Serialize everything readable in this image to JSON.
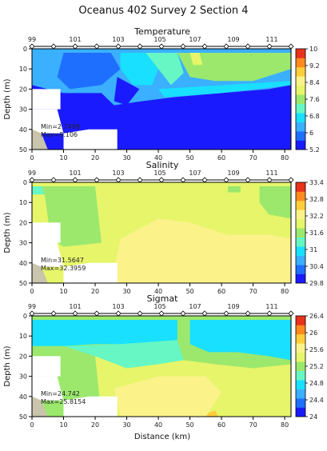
{
  "title": "Oceanus 402 Survey 2 Section 4",
  "xlabel": "Distance (km)",
  "chart_data": [
    {
      "type": "heatmap",
      "title": "Temperature",
      "ylabel": "Depth (m)",
      "x_ticks": [
        0,
        10,
        20,
        30,
        40,
        50,
        60,
        70,
        80
      ],
      "y_ticks": [
        0,
        10,
        20,
        30,
        40,
        50
      ],
      "xlim": [
        0,
        82
      ],
      "ylim": [
        0,
        50
      ],
      "station_ticks": [
        "99",
        "101",
        "103",
        "105",
        "107",
        "109",
        "111"
      ],
      "colorbar_ticks": [
        "10",
        "9.2",
        "8.4",
        "7.6",
        "6.8",
        "6",
        "5.2"
      ],
      "colorbar_range": [
        5.2,
        10
      ],
      "stats": [
        "Min=2.7498",
        "Max=8.106"
      ],
      "annotations": []
    },
    {
      "type": "heatmap",
      "title": "Salinity",
      "ylabel": "Depth (m)",
      "x_ticks": [
        0,
        10,
        20,
        30,
        40,
        50,
        60,
        70,
        80
      ],
      "y_ticks": [
        0,
        10,
        20,
        30,
        40,
        50
      ],
      "xlim": [
        0,
        82
      ],
      "ylim": [
        0,
        50
      ],
      "station_ticks": [
        "99",
        "101",
        "103",
        "105",
        "107",
        "109",
        "111"
      ],
      "colorbar_ticks": [
        "33.4",
        "32.8",
        "32.2",
        "31.6",
        "31",
        "30.4",
        "29.8"
      ],
      "colorbar_range": [
        29.8,
        33.4
      ],
      "stats": [
        "Min=31.5647",
        "Max=32.3959"
      ]
    },
    {
      "type": "heatmap",
      "title": "Sigmat",
      "ylabel": "Depth (m)",
      "x_ticks": [
        0,
        10,
        20,
        30,
        40,
        50,
        60,
        70,
        80
      ],
      "y_ticks": [
        0,
        10,
        20,
        30,
        40,
        50
      ],
      "xlim": [
        0,
        82
      ],
      "ylim": [
        0,
        50
      ],
      "station_ticks": [
        "99",
        "101",
        "103",
        "105",
        "107",
        "109",
        "111"
      ],
      "colorbar_ticks": [
        "26.4",
        "26",
        "25.6",
        "25.2",
        "24.8",
        "24.4",
        "24"
      ],
      "colorbar_range": [
        24,
        26.4
      ],
      "stats": [
        "Min=24.742",
        "Max=25.8154"
      ]
    }
  ],
  "colors": {
    "scale": [
      "#1a1aff",
      "#1f6fff",
      "#3ab0ff",
      "#19e0ff",
      "#66f7c4",
      "#9be86d",
      "#e6f56a",
      "#fbf28a",
      "#ffce3a",
      "#ff8a1e",
      "#e8321c"
    ],
    "mask": "#ffffff",
    "seabed": "#c9c4ac",
    "frame": "#000000"
  }
}
